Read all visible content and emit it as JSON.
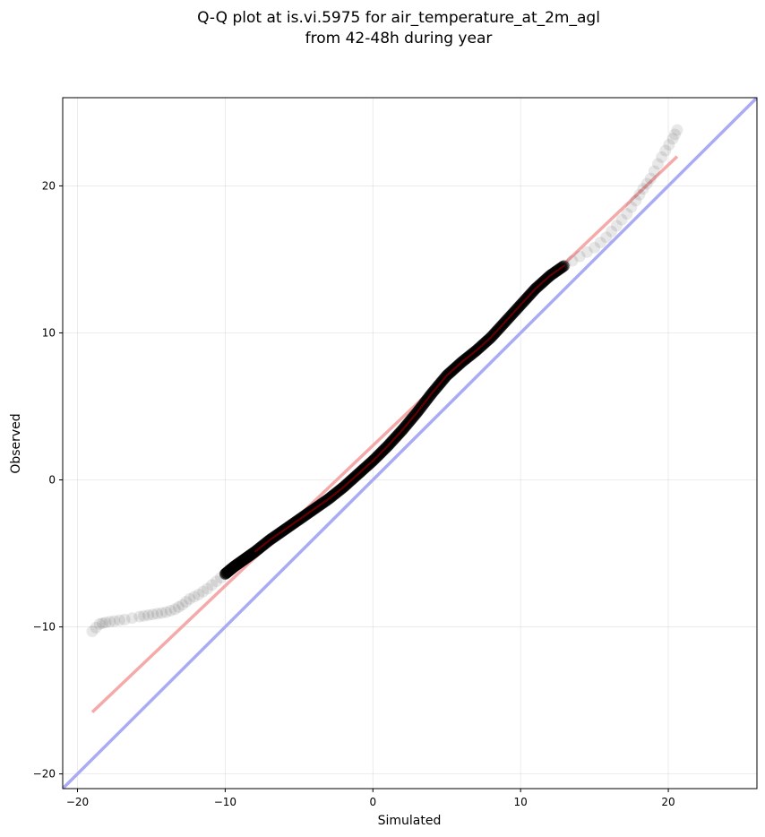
{
  "chart_data": {
    "type": "scatter",
    "title_line1": "Q-Q plot at is.vi.5975 for air_temperature_at_2m_agl",
    "title_line2": "from 42-48h during year",
    "xlabel": "Simulated",
    "ylabel": "Observed",
    "xlim": [
      -21,
      26
    ],
    "ylim": [
      -21,
      26
    ],
    "xticks": [
      -20,
      -10,
      0,
      10,
      20
    ],
    "yticks": [
      -20,
      -10,
      0,
      10,
      20
    ],
    "xtick_labels": [
      "−20",
      "−10",
      "0",
      "10",
      "20"
    ],
    "ytick_labels": [
      "−20",
      "−10",
      "0",
      "10",
      "20"
    ],
    "grid": true,
    "identity_line": {
      "from": [
        -21,
        -21
      ],
      "to": [
        26,
        26
      ],
      "color": "#aaaaf5"
    },
    "fit_line": {
      "from": [
        -19.0,
        -15.8
      ],
      "to": [
        20.6,
        22.0
      ],
      "color": "#f5aaaa"
    },
    "quantiles": {
      "sim": [
        -19.0,
        -18.5,
        -18.1,
        -17.5,
        -16.8,
        -15.8,
        -15.2,
        -14.6,
        -14.0,
        -13.4,
        -12.9,
        -12.4,
        -11.8,
        -11.2,
        -10.6,
        -10.0,
        -9.4,
        -8.7,
        -8.0,
        -7.0,
        -6.0,
        -5.0,
        -4.0,
        -3.0,
        -2.0,
        -1.0,
        0.0,
        1.0,
        2.0,
        3.0,
        4.0,
        5.0,
        6.0,
        7.0,
        8.0,
        9.0,
        10.0,
        11.0,
        12.0,
        13.0,
        14.0,
        15.0,
        15.8,
        16.5,
        17.2,
        17.8,
        18.3,
        18.8,
        19.3,
        19.8,
        20.3,
        20.6
      ],
      "obs": [
        -10.3,
        -9.8,
        -9.7,
        -9.6,
        -9.5,
        -9.3,
        -9.2,
        -9.1,
        -9.0,
        -8.8,
        -8.5,
        -8.1,
        -7.8,
        -7.4,
        -6.9,
        -6.4,
        -5.9,
        -5.4,
        -4.9,
        -4.1,
        -3.4,
        -2.7,
        -2.0,
        -1.3,
        -0.5,
        0.4,
        1.3,
        2.3,
        3.4,
        4.6,
        5.9,
        7.1,
        8.0,
        8.8,
        9.7,
        10.8,
        11.9,
        13.0,
        13.9,
        14.6,
        15.2,
        15.8,
        16.5,
        17.3,
        18.1,
        19.0,
        19.8,
        20.5,
        21.5,
        22.4,
        23.2,
        23.8
      ]
    }
  }
}
